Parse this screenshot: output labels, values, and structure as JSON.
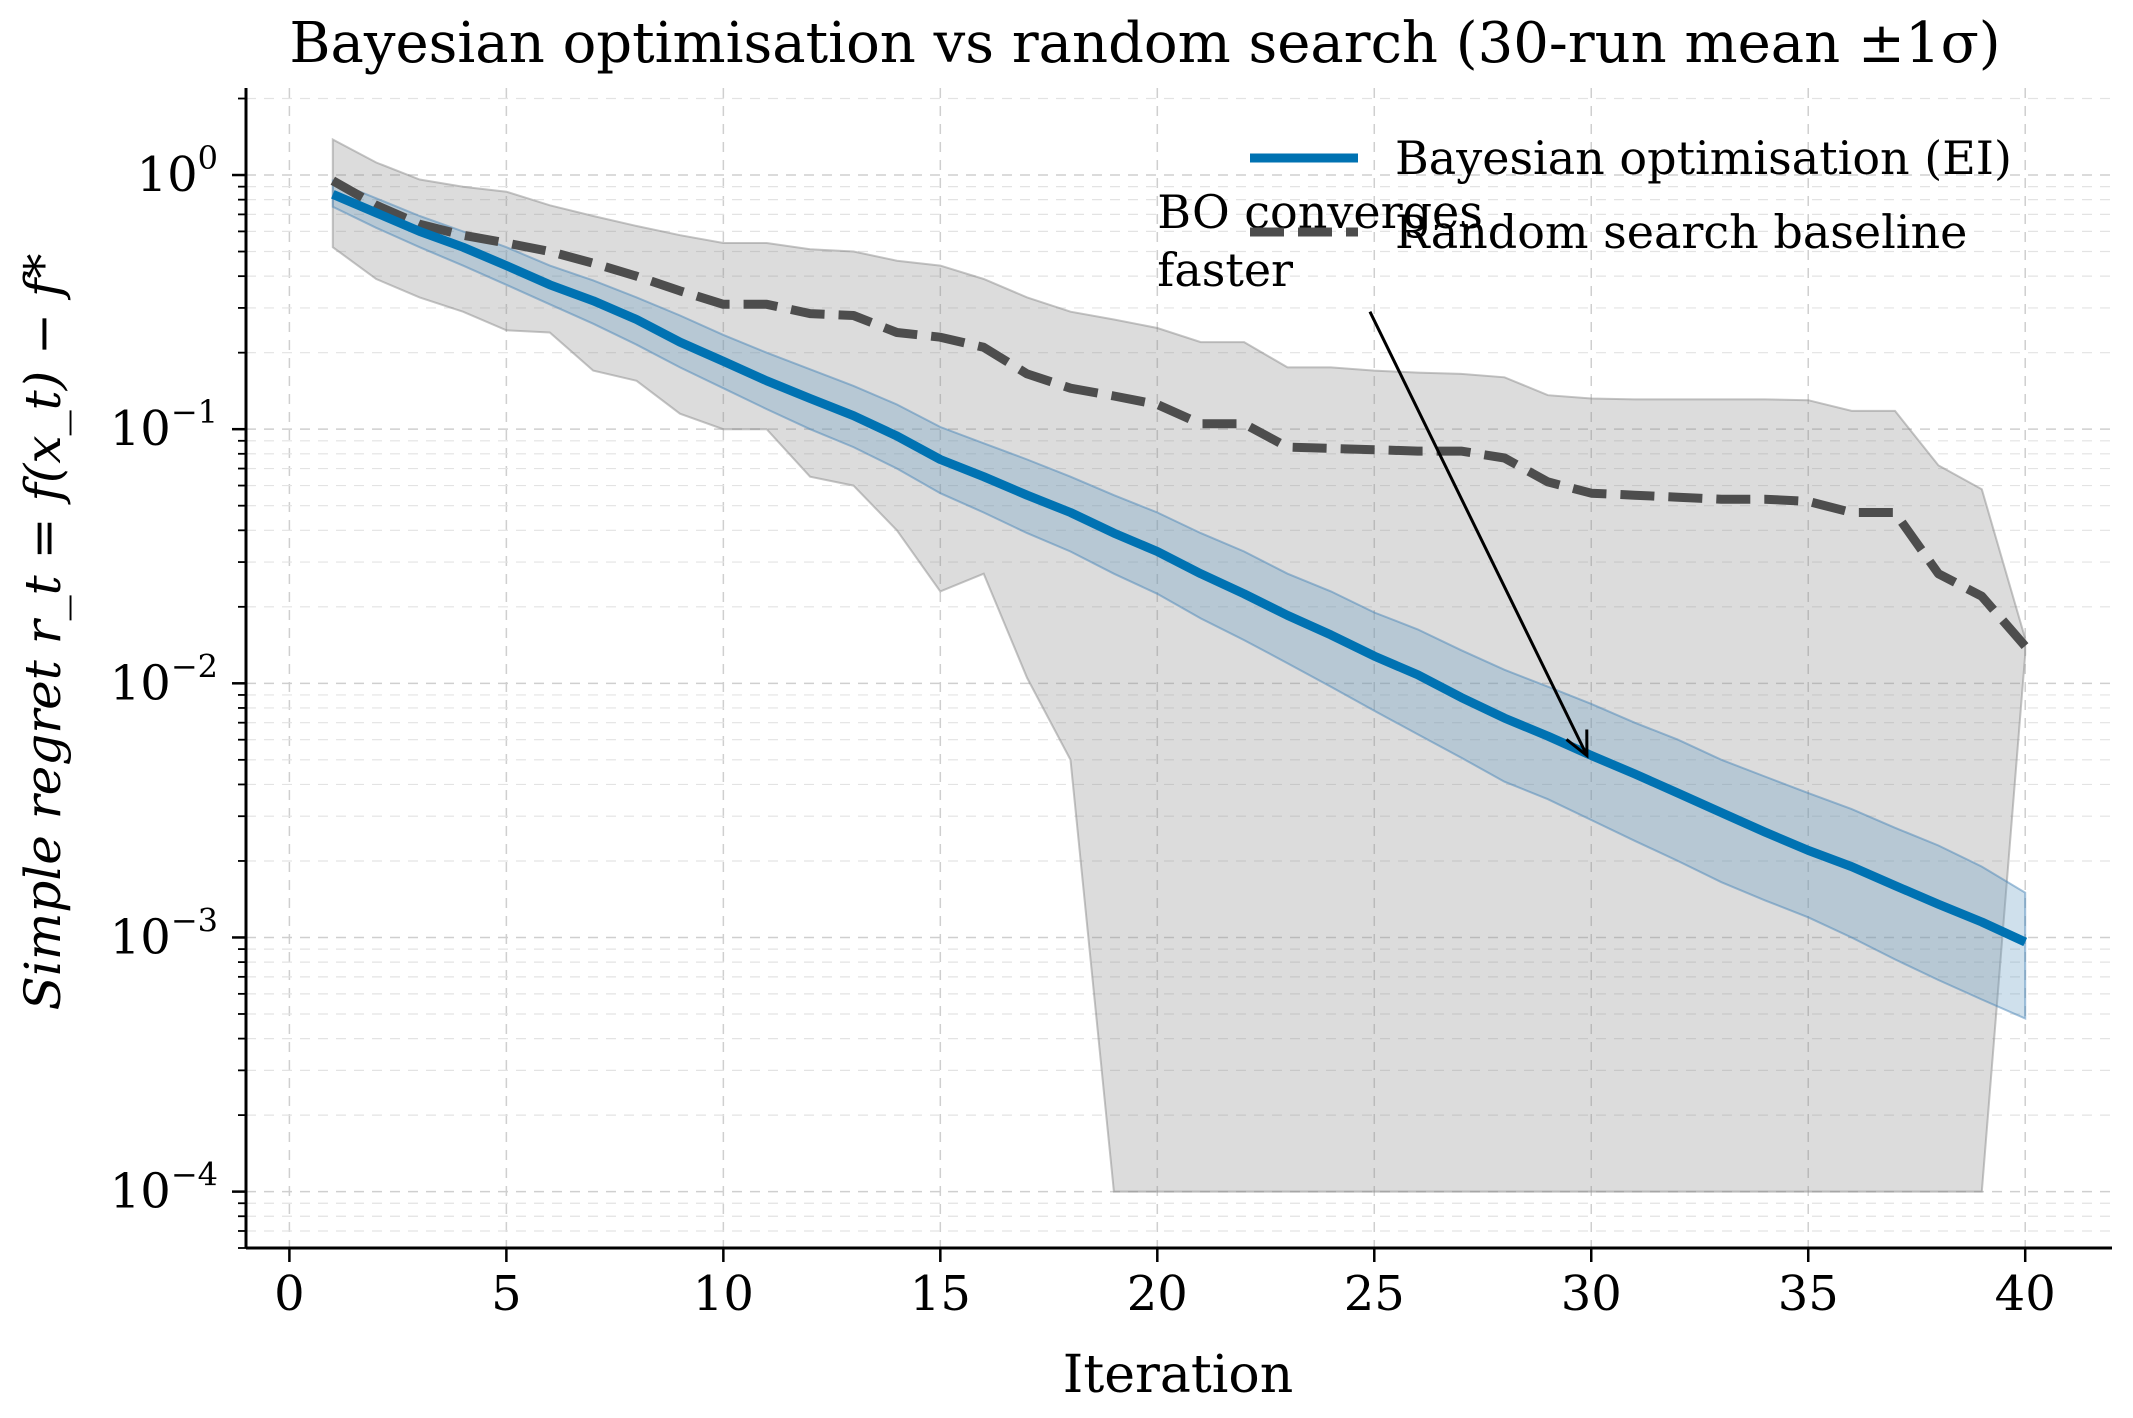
{
  "chart_data": {
    "type": "line",
    "title": "Bayesian optimisation vs random search (30-run mean ±1σ)",
    "xlabel": "Iteration",
    "ylabel": "Simple regret r_t = f(x_t) − f*",
    "yscale": "log",
    "xlim": [
      -1,
      42
    ],
    "ylim": [
      6e-05,
      2.2
    ],
    "xticks": [
      0,
      5,
      10,
      15,
      20,
      25,
      30,
      35,
      40
    ],
    "yticks": [
      {
        "value": 1,
        "base": "10",
        "exp": "0"
      },
      {
        "value": 0.1,
        "base": "10",
        "exp": "−1"
      },
      {
        "value": 0.01,
        "base": "10",
        "exp": "−2"
      },
      {
        "value": 0.001,
        "base": "10",
        "exp": "−3"
      },
      {
        "value": 0.0001,
        "base": "10",
        "exp": "−4"
      }
    ],
    "grid": true,
    "legend_position": "top-right",
    "x": [
      1,
      2,
      3,
      4,
      5,
      6,
      7,
      8,
      9,
      10,
      11,
      12,
      13,
      14,
      15,
      16,
      17,
      18,
      19,
      20,
      21,
      22,
      23,
      24,
      25,
      26,
      27,
      28,
      29,
      30,
      31,
      32,
      33,
      34,
      35,
      36,
      37,
      38,
      39,
      40
    ],
    "series": [
      {
        "name": "Bayesian optimisation (EI)",
        "color": "#0072b2",
        "style": "solid",
        "mean": [
          0.84,
          0.71,
          0.6,
          0.52,
          0.44,
          0.37,
          0.32,
          0.27,
          0.22,
          0.185,
          0.155,
          0.132,
          0.113,
          0.094,
          0.076,
          0.065,
          0.055,
          0.047,
          0.039,
          0.033,
          0.027,
          0.0225,
          0.0185,
          0.0155,
          0.0128,
          0.0108,
          0.0088,
          0.0073,
          0.0062,
          0.0052,
          0.0044,
          0.0037,
          0.0031,
          0.0026,
          0.0022,
          0.0019,
          0.0016,
          0.00135,
          0.00115,
          0.00096
        ],
        "lower": [
          0.75,
          0.62,
          0.52,
          0.44,
          0.37,
          0.31,
          0.26,
          0.215,
          0.175,
          0.145,
          0.12,
          0.1,
          0.085,
          0.07,
          0.056,
          0.047,
          0.039,
          0.033,
          0.027,
          0.0225,
          0.018,
          0.0148,
          0.012,
          0.0097,
          0.0078,
          0.0063,
          0.0051,
          0.0041,
          0.0035,
          0.0029,
          0.0024,
          0.002,
          0.00165,
          0.0014,
          0.0012,
          0.001,
          0.00082,
          0.00068,
          0.00057,
          0.00048
        ],
        "upper": [
          0.95,
          0.81,
          0.69,
          0.6,
          0.52,
          0.44,
          0.385,
          0.33,
          0.28,
          0.235,
          0.2,
          0.172,
          0.148,
          0.125,
          0.102,
          0.088,
          0.076,
          0.065,
          0.055,
          0.047,
          0.039,
          0.033,
          0.027,
          0.023,
          0.019,
          0.0163,
          0.0135,
          0.0113,
          0.0097,
          0.0083,
          0.007,
          0.006,
          0.005,
          0.0043,
          0.0037,
          0.0032,
          0.0027,
          0.0023,
          0.0019,
          0.0015
        ]
      },
      {
        "name": "Random search baseline",
        "color": "#4d4d4d",
        "style": "dashed",
        "mean": [
          0.95,
          0.76,
          0.64,
          0.58,
          0.54,
          0.5,
          0.45,
          0.4,
          0.35,
          0.31,
          0.31,
          0.285,
          0.28,
          0.24,
          0.23,
          0.21,
          0.165,
          0.145,
          0.135,
          0.125,
          0.105,
          0.105,
          0.085,
          0.084,
          0.083,
          0.082,
          0.082,
          0.077,
          0.062,
          0.056,
          0.055,
          0.054,
          0.053,
          0.053,
          0.052,
          0.047,
          0.047,
          0.027,
          0.022,
          0.014
        ],
        "lower": [
          0.52,
          0.39,
          0.33,
          0.29,
          0.245,
          0.24,
          0.17,
          0.155,
          0.115,
          0.1,
          0.1,
          0.065,
          0.06,
          0.04,
          0.023,
          0.027,
          0.0105,
          0.005,
          0.0001,
          0.0001,
          0.0001,
          0.0001,
          0.0001,
          0.0001,
          0.0001,
          0.0001,
          0.0001,
          0.0001,
          0.0001,
          0.0001,
          0.0001,
          0.0001,
          0.0001,
          0.0001,
          0.0001,
          0.0001,
          0.0001,
          0.0001,
          0.0001,
          0.013
        ],
        "upper": [
          1.38,
          1.12,
          0.96,
          0.9,
          0.86,
          0.76,
          0.69,
          0.63,
          0.58,
          0.54,
          0.54,
          0.51,
          0.5,
          0.46,
          0.44,
          0.39,
          0.33,
          0.29,
          0.27,
          0.25,
          0.22,
          0.22,
          0.175,
          0.175,
          0.17,
          0.167,
          0.165,
          0.16,
          0.136,
          0.132,
          0.131,
          0.131,
          0.131,
          0.131,
          0.13,
          0.118,
          0.118,
          0.072,
          0.058,
          0.015
        ]
      }
    ],
    "annotation": {
      "lines": [
        "BO converges",
        "faster"
      ],
      "text_x": 20,
      "text_y": 0.62,
      "arrow_from_x": 24.9,
      "arrow_from_y": 0.29,
      "arrow_to_x": 29.9,
      "arrow_to_y": 0.0052
    }
  }
}
